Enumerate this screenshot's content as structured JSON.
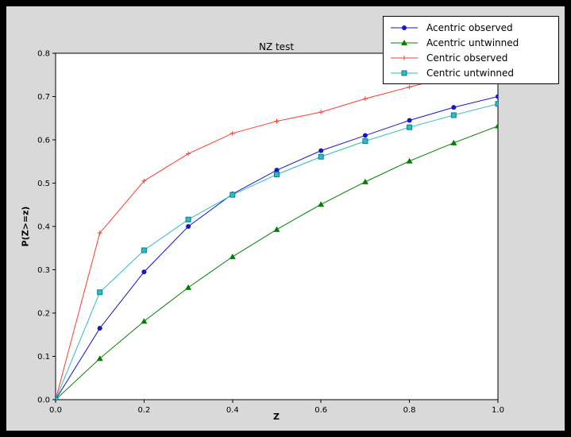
{
  "chart_data": {
    "type": "line",
    "title": "NZ test",
    "xlabel": "Z",
    "ylabel": "P(Z>=z)",
    "xlim": [
      0.0,
      1.0
    ],
    "ylim": [
      0.0,
      0.8
    ],
    "xticks": [
      0.0,
      0.2,
      0.4,
      0.6,
      0.8,
      1.0
    ],
    "yticks": [
      0.0,
      0.1,
      0.2,
      0.3,
      0.4,
      0.5,
      0.6,
      0.7,
      0.8
    ],
    "grid": false,
    "legend_position": "upper right",
    "x": [
      0.0,
      0.1,
      0.2,
      0.3,
      0.4,
      0.5,
      0.6,
      0.7,
      0.8,
      0.9,
      1.0
    ],
    "series": [
      {
        "name": "Acentric observed",
        "color": "#1515cd",
        "marker": "circle",
        "values": [
          0.0,
          0.165,
          0.295,
          0.4,
          0.475,
          0.53,
          0.575,
          0.61,
          0.645,
          0.675,
          0.7
        ]
      },
      {
        "name": "Acentric untwinned",
        "color": "#008000",
        "marker": "triangle",
        "values": [
          0.0,
          0.095,
          0.181,
          0.259,
          0.33,
          0.393,
          0.451,
          0.503,
          0.551,
          0.593,
          0.632
        ]
      },
      {
        "name": "Centric observed",
        "color": "#ff3b2e",
        "marker": "plus",
        "values": [
          0.0,
          0.385,
          0.505,
          0.568,
          0.615,
          0.643,
          0.664,
          0.695,
          0.722,
          0.748,
          0.772
        ]
      },
      {
        "name": "Centric untwinned",
        "color": "#29bdc9",
        "marker": "square",
        "values": [
          0.0,
          0.248,
          0.345,
          0.416,
          0.473,
          0.52,
          0.561,
          0.597,
          0.629,
          0.657,
          0.683
        ]
      }
    ],
    "palette": {
      "page_bg": "#000000",
      "figure_bg": "#d9d9d9",
      "axes_bg": "#ffffff",
      "axis_color": "#000000",
      "tick_label_color": "#000000",
      "legend_bg": "#ffffff",
      "legend_border": "#000000"
    }
  }
}
